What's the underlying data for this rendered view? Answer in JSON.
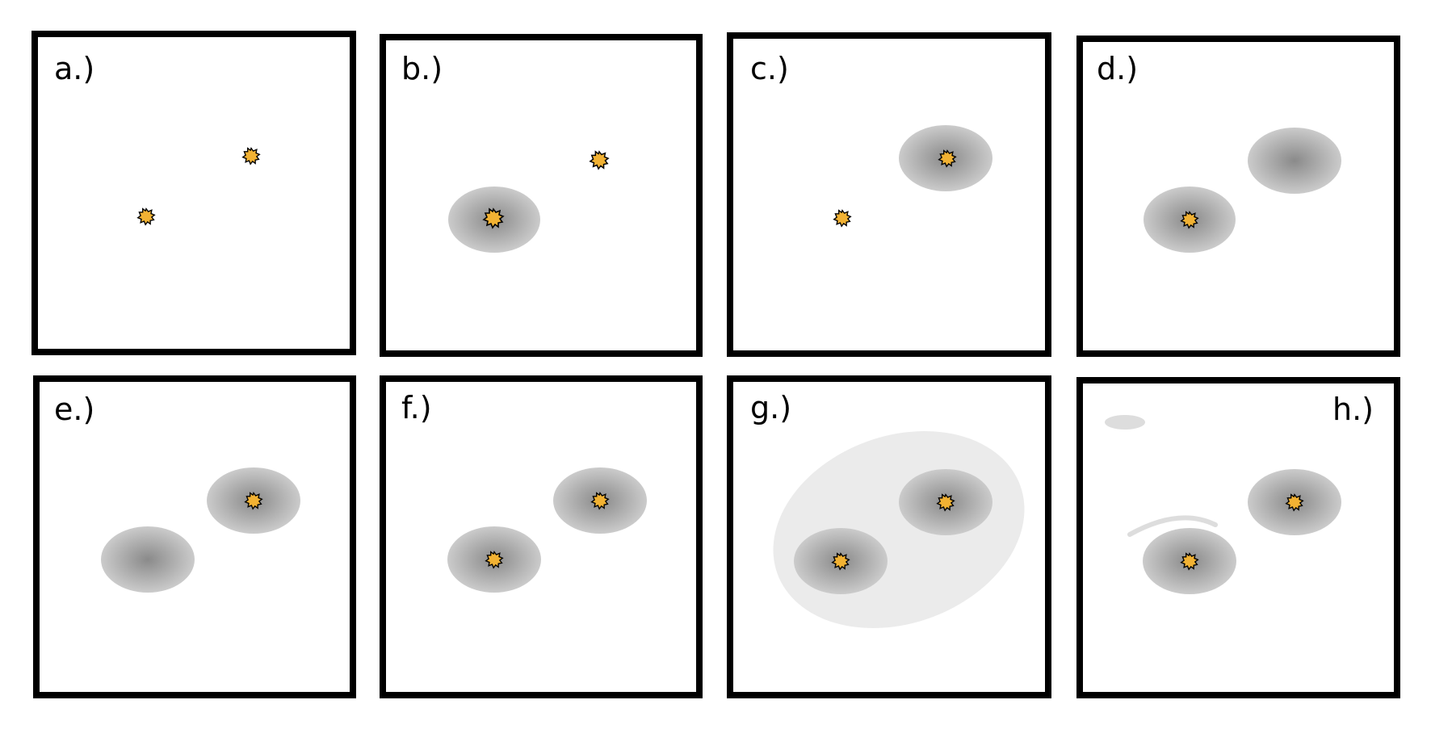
{
  "colors": {
    "frame": "#000000",
    "background": "#ffffff",
    "halo_center": "#8a8a8a",
    "halo_edge": "#cbcbcb",
    "envelope": "#ebebeb",
    "filament": "#dddddd",
    "particle_fill": "#f2b233",
    "particle_outline": "#000000"
  },
  "icons": {
    "particle": "spiky-particle-icon",
    "halo": "gray-halo"
  },
  "panels": [
    {
      "label": "a.)"
    },
    {
      "label": "b.)"
    },
    {
      "label": "c.)"
    },
    {
      "label": "d.)"
    },
    {
      "label": "e.)"
    },
    {
      "label": "f.)"
    },
    {
      "label": "g.)"
    },
    {
      "label": "h.)"
    }
  ]
}
